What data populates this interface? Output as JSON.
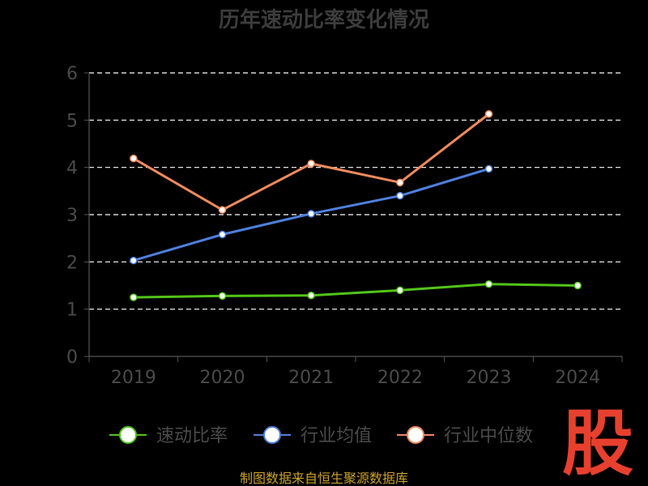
{
  "chart_data": {
    "type": "line",
    "title": "历年速动比率变化情况",
    "categories": [
      "2019",
      "2020",
      "2021",
      "2022",
      "2023",
      "2024"
    ],
    "ylim": [
      0,
      6
    ],
    "yticks": [
      0,
      1,
      2,
      3,
      4,
      5,
      6
    ],
    "grid": true,
    "legend_position": "bottom",
    "series": [
      {
        "name": "速动比率",
        "color": "#52c41a",
        "values": [
          1.25,
          1.28,
          1.29,
          1.4,
          1.53,
          1.5
        ]
      },
      {
        "name": "行业均值",
        "color": "#4e7fdc",
        "values": [
          2.03,
          2.58,
          3.02,
          3.4,
          3.97,
          null
        ]
      },
      {
        "name": "行业中位数",
        "color": "#f08a5d",
        "values": [
          4.19,
          3.1,
          4.08,
          3.68,
          5.13,
          null
        ]
      }
    ]
  },
  "source_note": "制图数据来自恒生聚源数据库",
  "watermark_text": "股"
}
